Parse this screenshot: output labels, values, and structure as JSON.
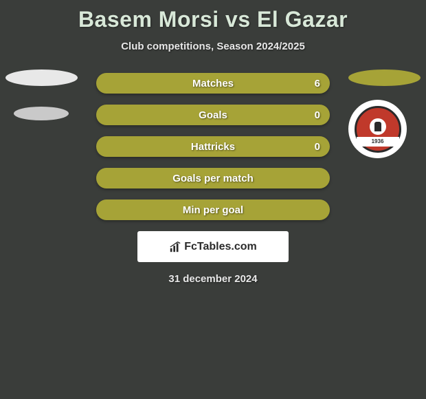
{
  "title": "Basem Morsi vs El Gazar",
  "subtitle": "Club competitions, Season 2024/2025",
  "date": "31 december 2024",
  "watermark": {
    "text": "FcTables.com"
  },
  "colors": {
    "bar_fill": "#a6a337",
    "bar_empty": "#909632",
    "badge_left_1": "#e8e8e8",
    "badge_left_2": "#c9c9c9",
    "badge_right_1": "#a6a337",
    "logo_bg": "#ffffff",
    "logo_inner": "#c0392b"
  },
  "stats": [
    {
      "label": "Matches",
      "right_value": "6",
      "show_right": true
    },
    {
      "label": "Goals",
      "right_value": "0",
      "show_right": true
    },
    {
      "label": "Hattricks",
      "right_value": "0",
      "show_right": true
    },
    {
      "label": "Goals per match",
      "right_value": "",
      "show_right": false
    },
    {
      "label": "Min per goal",
      "right_value": "",
      "show_right": false
    }
  ],
  "club_year": "1936"
}
